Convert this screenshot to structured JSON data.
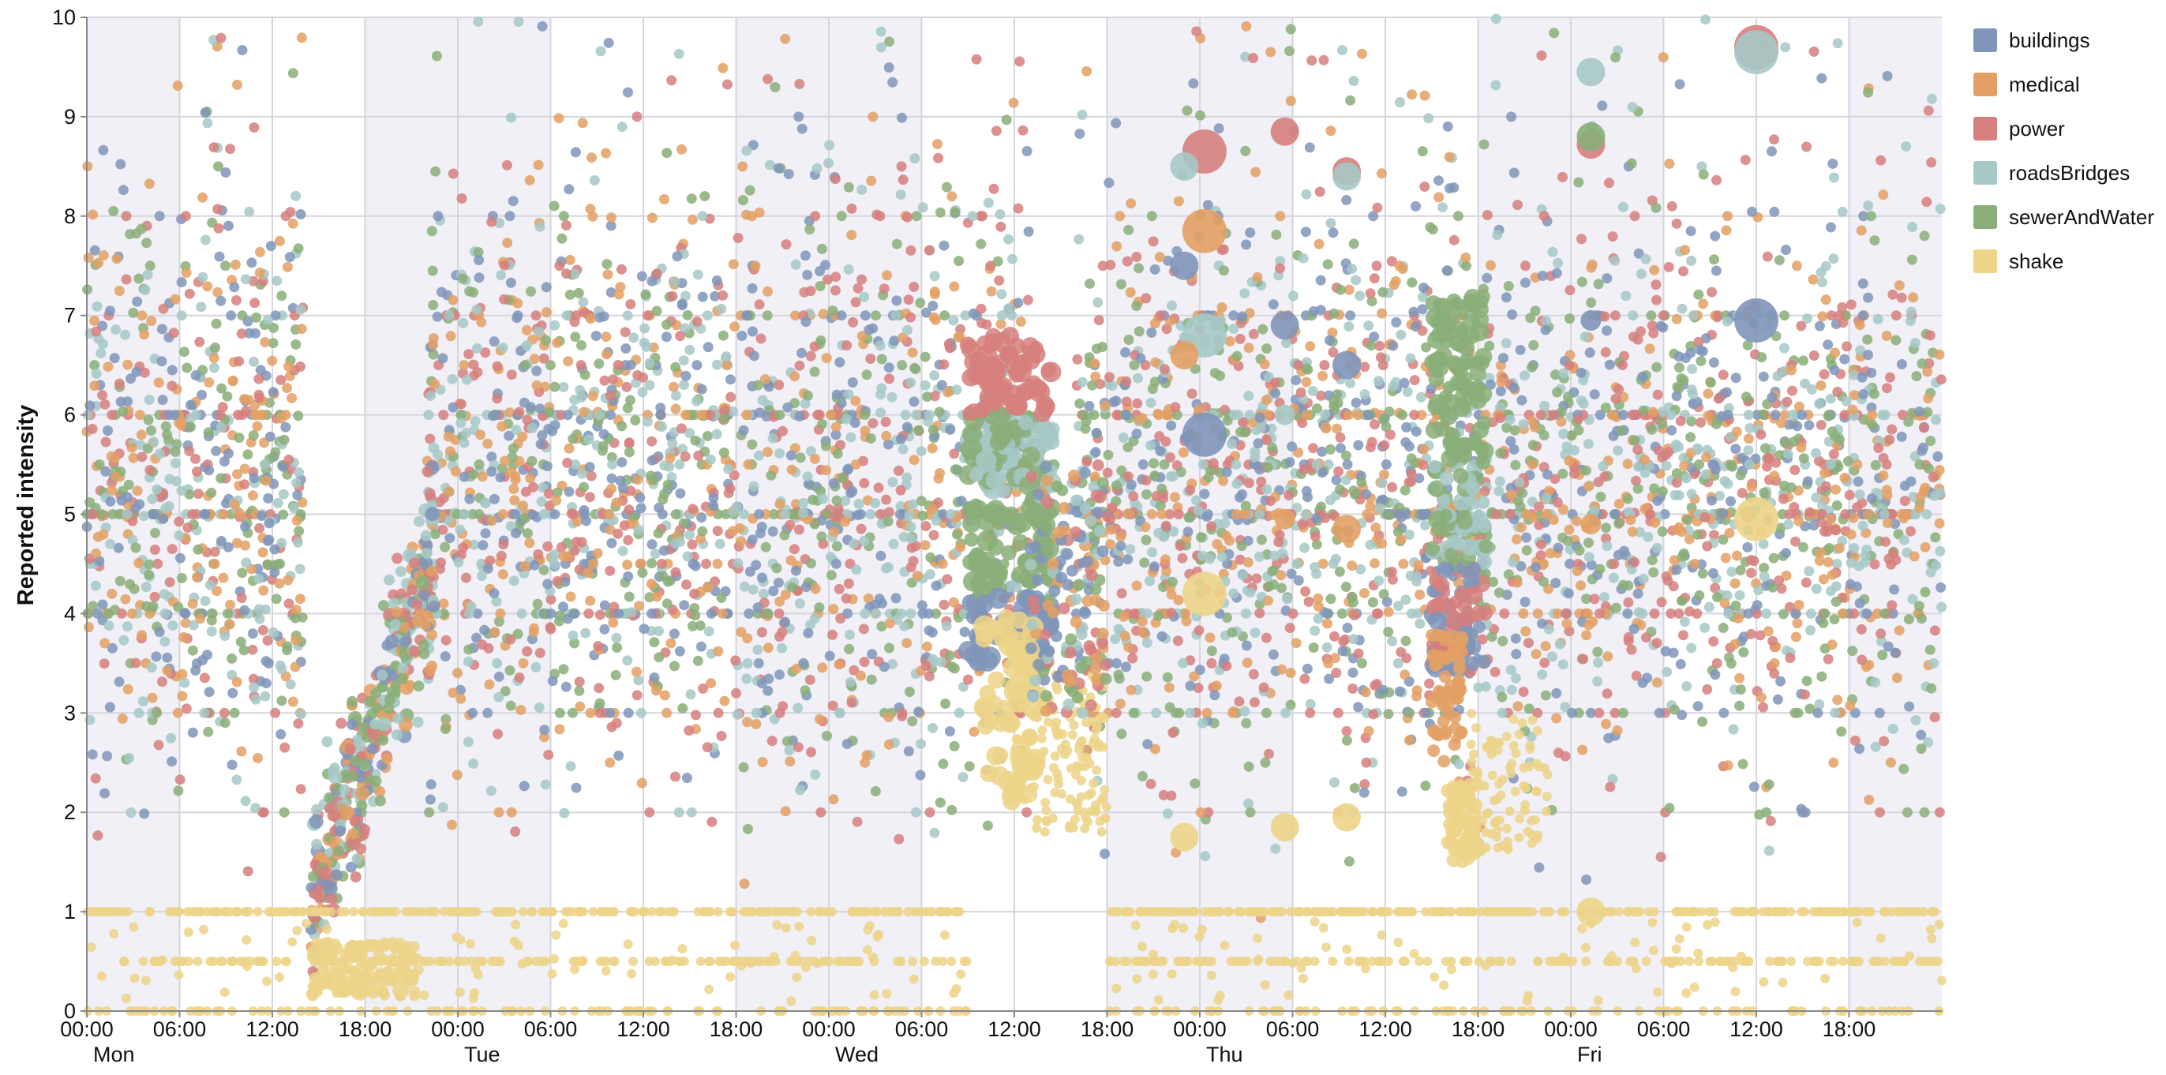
{
  "chart_data": {
    "type": "scatter",
    "title": "",
    "xlabel": "",
    "ylabel": "Reported intensity",
    "ylim": [
      0,
      10
    ],
    "y_ticks": [
      "0",
      "1",
      "2",
      "3",
      "4",
      "5",
      "6",
      "7",
      "8",
      "9",
      "10"
    ],
    "x_range_hours": [
      0,
      120
    ],
    "x_tick_labels": [
      {
        "hour": 0,
        "label": "00:00"
      },
      {
        "hour": 6,
        "label": "06:00"
      },
      {
        "hour": 12,
        "label": "12:00"
      },
      {
        "hour": 18,
        "label": "18:00"
      },
      {
        "hour": 24,
        "label": "00:00"
      },
      {
        "hour": 30,
        "label": "06:00"
      },
      {
        "hour": 36,
        "label": "12:00"
      },
      {
        "hour": 42,
        "label": "18:00"
      },
      {
        "hour": 48,
        "label": "00:00"
      },
      {
        "hour": 54,
        "label": "06:00"
      },
      {
        "hour": 60,
        "label": "12:00"
      },
      {
        "hour": 66,
        "label": "18:00"
      },
      {
        "hour": 72,
        "label": "00:00"
      },
      {
        "hour": 78,
        "label": "06:00"
      },
      {
        "hour": 84,
        "label": "12:00"
      },
      {
        "hour": 90,
        "label": "18:00"
      },
      {
        "hour": 96,
        "label": "00:00"
      },
      {
        "hour": 102,
        "label": "06:00"
      },
      {
        "hour": 108,
        "label": "12:00"
      },
      {
        "hour": 114,
        "label": "18:00"
      }
    ],
    "day_labels": [
      {
        "hour": 0,
        "label": "Mon"
      },
      {
        "hour": 24,
        "label": "Tue"
      },
      {
        "hour": 48,
        "label": "Wed"
      },
      {
        "hour": 72,
        "label": "Thu"
      },
      {
        "hour": 96,
        "label": "Fri"
      }
    ],
    "grid": true,
    "legend_position": "top-right",
    "shaded_bands_hours": [
      [
        0,
        6
      ],
      [
        18,
        30
      ],
      [
        42,
        54
      ],
      [
        66,
        78
      ],
      [
        90,
        102
      ],
      [
        114,
        120
      ]
    ],
    "series": [
      {
        "name": "buildings",
        "color": "#7f95ba"
      },
      {
        "name": "medical",
        "color": "#e3a064"
      },
      {
        "name": "power",
        "color": "#d67f7d"
      },
      {
        "name": "roadsBridges",
        "color": "#a6c8c7"
      },
      {
        "name": "sewerAndWater",
        "color": "#8aae78"
      },
      {
        "name": "shake",
        "color": "#ecd488"
      }
    ],
    "highlights": [
      {
        "series": "power",
        "points": [
          [
            72.3,
            8.65,
            3
          ],
          [
            77.5,
            8.85,
            2
          ],
          [
            81.5,
            8.45,
            2
          ],
          [
            108.0,
            9.7,
            3
          ],
          [
            97.3,
            8.72,
            2
          ]
        ]
      },
      {
        "series": "roadsBridges",
        "points": [
          [
            71.0,
            8.5,
            2
          ],
          [
            72.3,
            6.8,
            3
          ],
          [
            81.5,
            8.4,
            2
          ],
          [
            97.3,
            9.45,
            2
          ],
          [
            108.0,
            9.65,
            3
          ],
          [
            77.5,
            6.0,
            1
          ]
        ]
      },
      {
        "series": "buildings",
        "points": [
          [
            71.0,
            7.5,
            2
          ],
          [
            72.3,
            5.8,
            3
          ],
          [
            77.5,
            6.9,
            2
          ],
          [
            81.5,
            6.5,
            2
          ],
          [
            108.0,
            6.95,
            3
          ],
          [
            97.3,
            6.95,
            1
          ]
        ]
      },
      {
        "series": "medical",
        "points": [
          [
            72.3,
            7.85,
            3
          ],
          [
            71.0,
            6.6,
            2
          ],
          [
            77.5,
            4.95,
            1
          ],
          [
            81.5,
            4.85,
            2
          ],
          [
            97.3,
            4.9,
            1
          ]
        ]
      },
      {
        "series": "sewerAndWater",
        "points": [
          [
            97.3,
            8.8,
            2
          ]
        ]
      },
      {
        "series": "shake",
        "points": [
          [
            71.0,
            1.75,
            2
          ],
          [
            72.3,
            4.2,
            3
          ],
          [
            77.5,
            1.85,
            2
          ],
          [
            81.5,
            1.95,
            2
          ],
          [
            108.0,
            4.95,
            3
          ],
          [
            97.3,
            1.0,
            2
          ]
        ]
      }
    ]
  }
}
